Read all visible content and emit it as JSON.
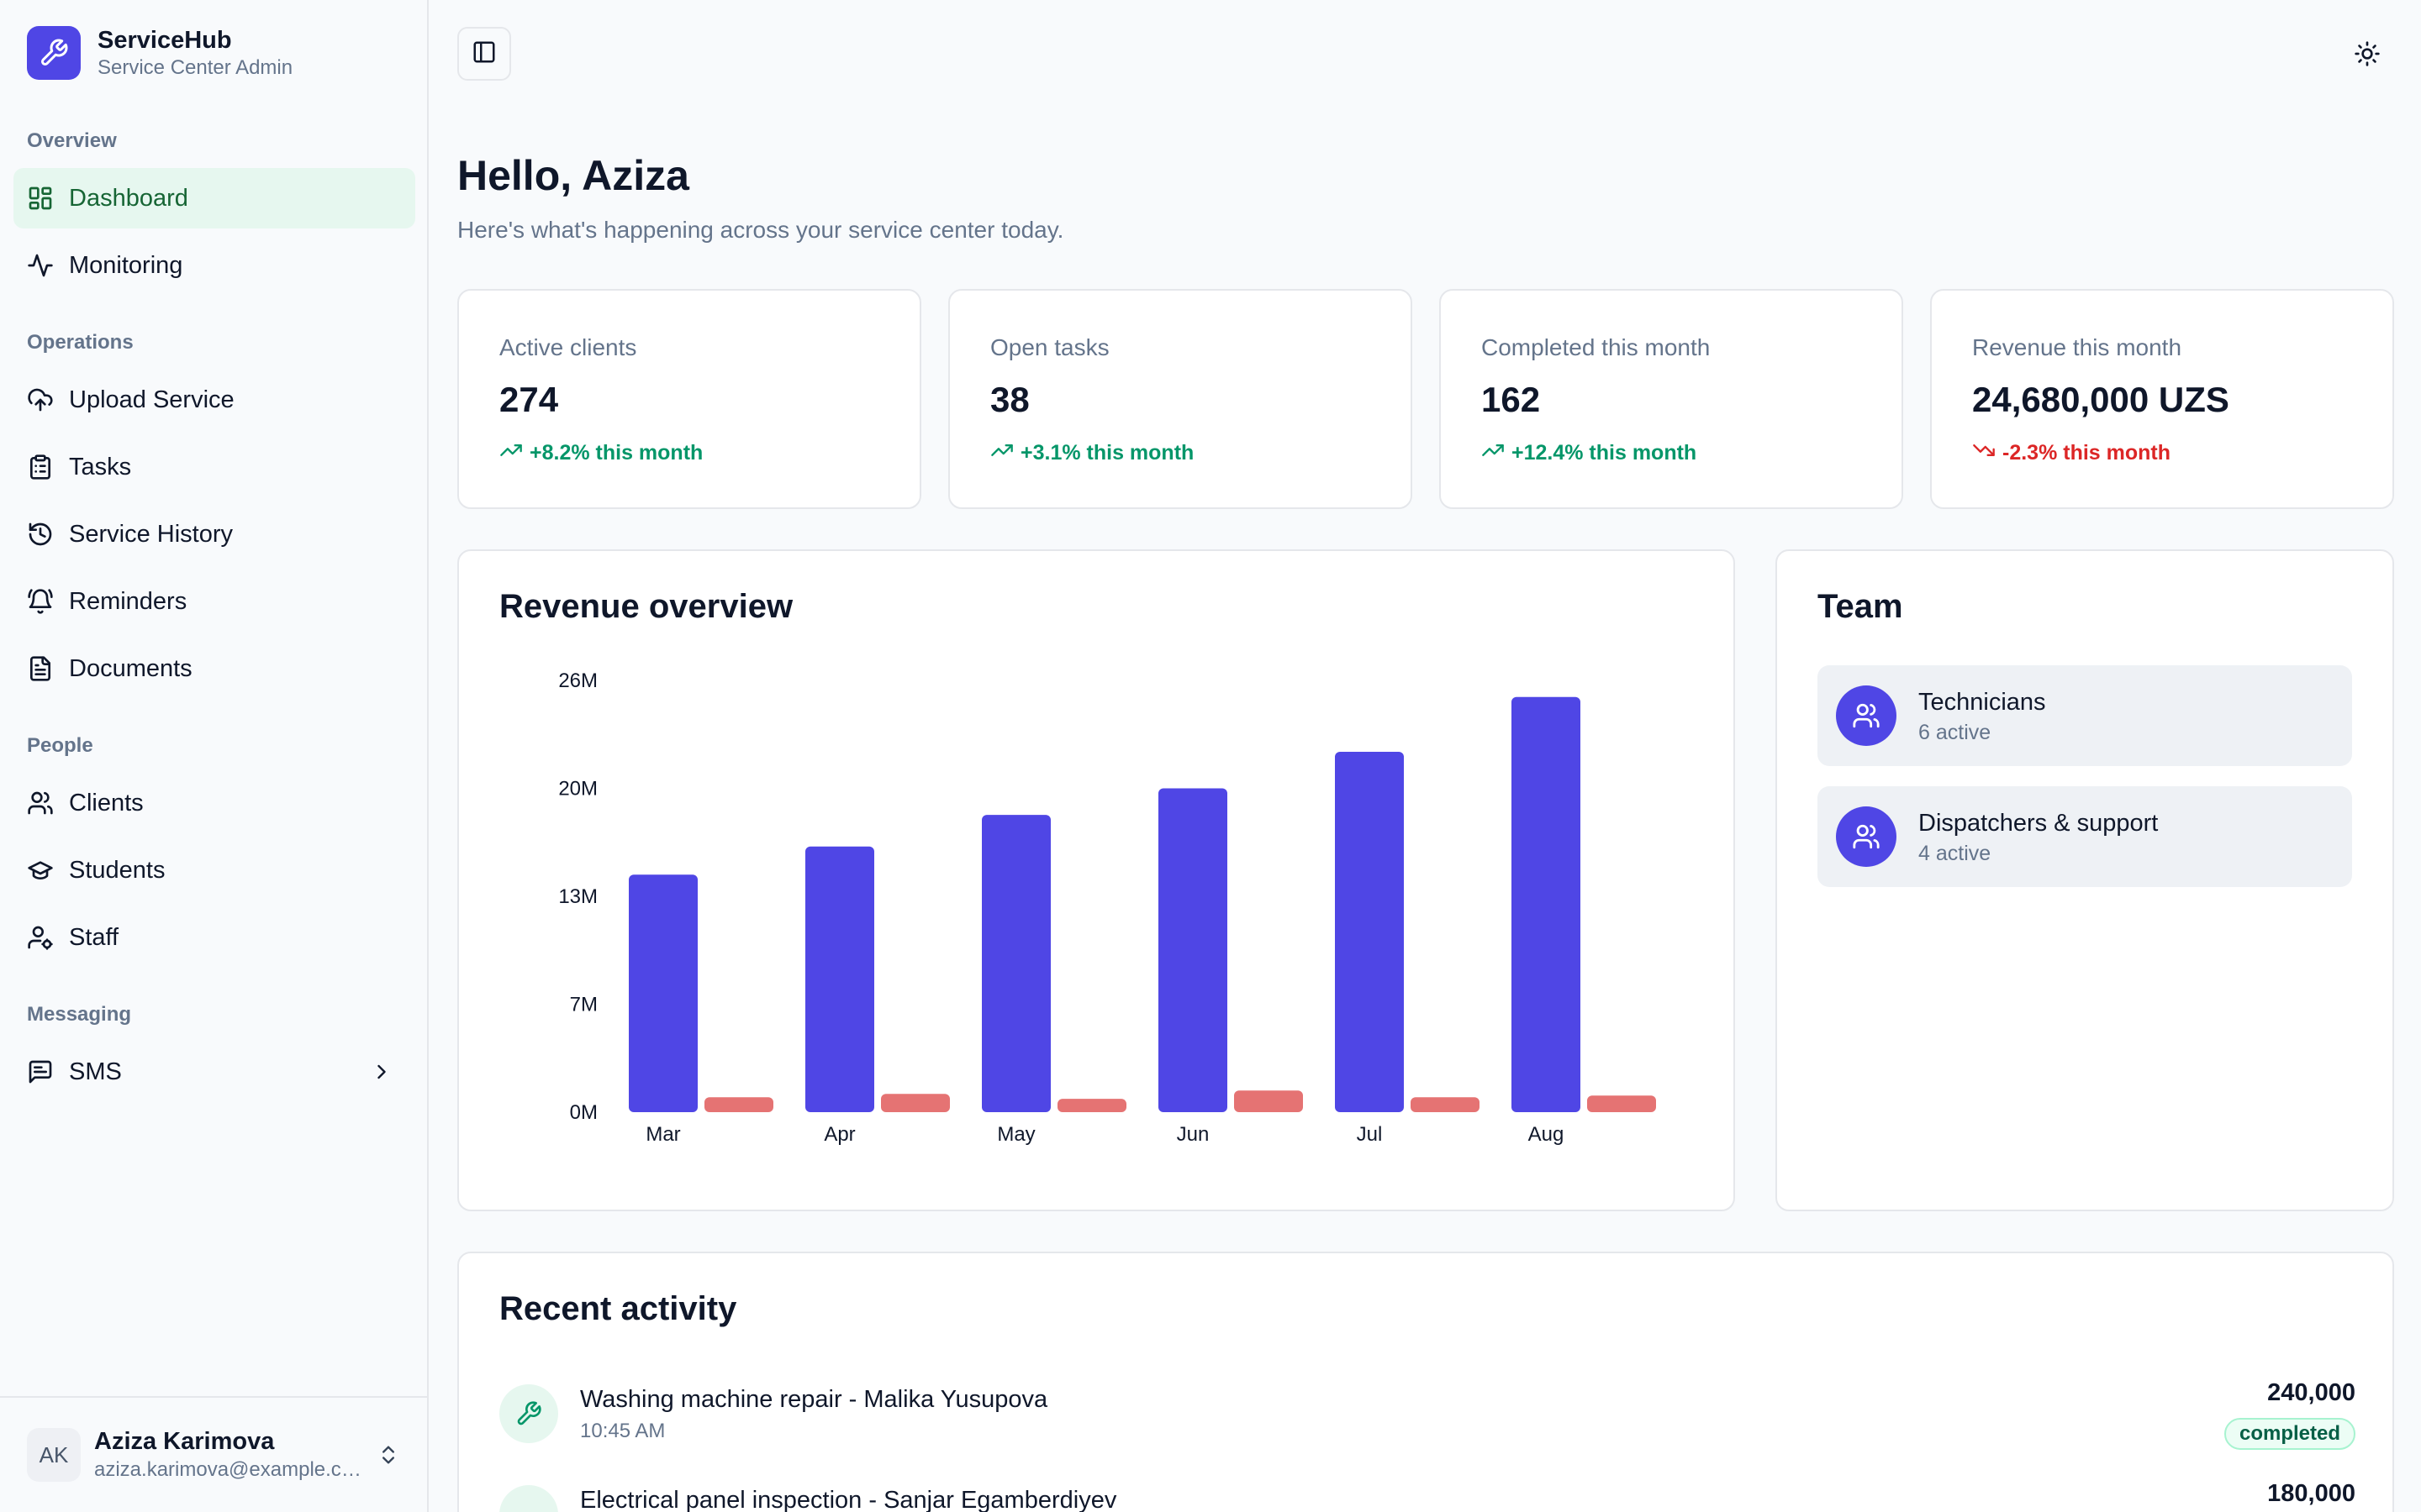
{
  "brand": {
    "name": "ServiceHub",
    "subtitle": "Service Center Admin"
  },
  "sidebar": {
    "sections": {
      "overview": "Overview",
      "operations": "Operations",
      "people": "People",
      "messaging": "Messaging"
    },
    "items": {
      "dashboard": "Dashboard",
      "monitoring": "Monitoring",
      "upload_service": "Upload Service",
      "tasks": "Tasks",
      "service_history": "Service History",
      "reminders": "Reminders",
      "documents": "Documents",
      "clients": "Clients",
      "students": "Students",
      "staff": "Staff",
      "sms": "SMS"
    },
    "active_item": "dashboard"
  },
  "user": {
    "initials": "AK",
    "name": "Aziza Karimova",
    "email": "aziza.karimova@example.com"
  },
  "header": {
    "greeting": "Hello, Aziza",
    "subtitle": "Here's what's happening across your service center today."
  },
  "stats": [
    {
      "label": "Active clients",
      "value": "274",
      "trend": "+8.2% this month",
      "direction": "up"
    },
    {
      "label": "Open tasks",
      "value": "38",
      "trend": "+3.1% this month",
      "direction": "up"
    },
    {
      "label": "Completed this month",
      "value": "162",
      "trend": "+12.4% this month",
      "direction": "up"
    },
    {
      "label": "Revenue this month",
      "value": "24,680,000 UZS",
      "trend": "-2.3% this month",
      "direction": "down"
    }
  ],
  "revenue_card": {
    "title": "Revenue overview"
  },
  "chart_data": {
    "type": "bar",
    "title": "Revenue overview",
    "categories": [
      "Mar",
      "Apr",
      "May",
      "Jun",
      "Jul",
      "Aug"
    ],
    "series": [
      {
        "values": [
          14.3,
          16.0,
          17.9,
          19.5,
          21.7,
          25.0
        ],
        "color": "#4f46e5"
      },
      {
        "values": [
          0.9,
          1.1,
          0.8,
          1.3,
          0.9,
          1.0
        ],
        "color": "#e57373"
      }
    ],
    "y_ticks": [
      "0M",
      "7M",
      "13M",
      "20M",
      "26M"
    ],
    "ylim": [
      0,
      26
    ],
    "grid": false,
    "legend": "none"
  },
  "team": {
    "title": "Team",
    "groups": [
      {
        "name": "Technicians",
        "sub": "6 active"
      },
      {
        "name": "Dispatchers & support",
        "sub": "4 active"
      }
    ]
  },
  "activity": {
    "title": "Recent activity",
    "items": [
      {
        "title": "Washing machine repair - Malika Yusupova",
        "time": "10:45 AM",
        "amount": "240,000",
        "status": "completed"
      },
      {
        "title": "Electrical panel inspection - Sanjar Egamberdiyev",
        "time": "",
        "amount": "180,000",
        "status": ""
      }
    ]
  },
  "colors": {
    "accent": "#4f46e5",
    "active_nav_bg": "#e6f7ef",
    "active_nav_text": "#166534",
    "up": "#059669",
    "down": "#dc2626"
  },
  "icons": {
    "brand": "wrench-icon",
    "toggle": "sidebar-toggle-icon",
    "theme": "sun-icon",
    "trend_up": "trending-up-icon",
    "trend_down": "trending-down-icon",
    "team": "users-icon",
    "activity": "wrench-icon"
  }
}
